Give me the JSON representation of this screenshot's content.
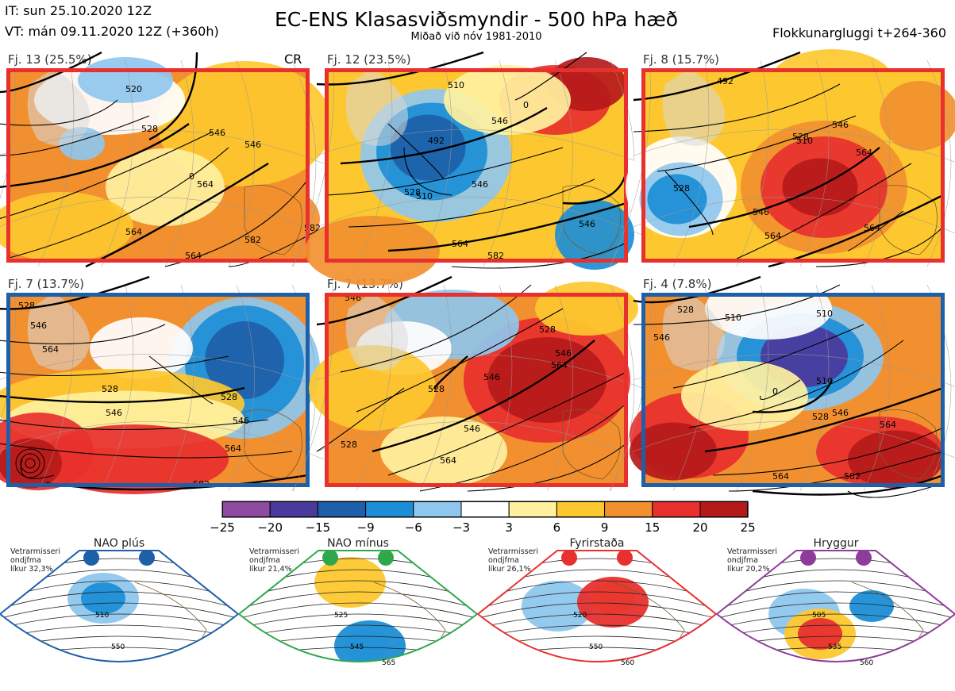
{
  "header": {
    "issue_time": "IT: sun 25.10.2020 12Z",
    "valid_time": "VT: mán 09.11.2020 12Z  (+360h)",
    "title": "EC-ENS Klasasviðsmyndir - 500 hPa hæð",
    "subtitle": "Miðað við nóv 1981-2010",
    "cluster_window": "Flokkunargluggi t+264-360"
  },
  "panels": [
    {
      "label": "Fj. 13 (25.5%)",
      "frame_color": "#e8302e",
      "tag": "CR",
      "contours": [
        "520",
        "528",
        "546",
        "546",
        "564",
        "564",
        "564",
        "582",
        "582",
        "0"
      ]
    },
    {
      "label": "Fj. 12 (23.5%)",
      "frame_color": "#e8302e",
      "tag": "",
      "contours": [
        "510",
        "492",
        "546",
        "528",
        "510",
        "546",
        "564",
        "582",
        "0",
        "546"
      ]
    },
    {
      "label": "Fj. 8 (15.7%)",
      "frame_color": "#e8302e",
      "tag": "",
      "contours": [
        "492",
        "510",
        "528",
        "546",
        "564",
        "528",
        "546",
        "564",
        "564"
      ]
    },
    {
      "label": "Fj. 7 (13.7%)",
      "frame_color": "#1d5fa8",
      "tag": "",
      "contours": [
        "528",
        "546",
        "564",
        "528",
        "546",
        "528",
        "546",
        "564",
        "582"
      ]
    },
    {
      "label": "Fj. 7 (13.7%)",
      "frame_color": "#e8302e",
      "tag": "",
      "contours": [
        "546",
        "528",
        "546",
        "528",
        "546",
        "564",
        "546",
        "564",
        "528"
      ]
    },
    {
      "label": "Fj. 4 (7.8%)",
      "frame_color": "#1d5fa8",
      "tag": "",
      "contours": [
        "528",
        "510",
        "546",
        "510",
        "0",
        "510",
        "528",
        "546",
        "564",
        "564",
        "582"
      ]
    }
  ],
  "colorbar": {
    "ticks": [
      "−25",
      "−20",
      "−15",
      "−9",
      "−6",
      "−3",
      "3",
      "6",
      "9",
      "15",
      "20",
      "25"
    ],
    "colors": [
      "#8e4a9e",
      "#4a3a9c",
      "#1d5fa8",
      "#1c8ed6",
      "#8fc7ee",
      "#ffffff",
      "#fff1a0",
      "#fdc82f",
      "#f2902f",
      "#e8302e",
      "#b51a1a"
    ]
  },
  "regimes": [
    {
      "name": "NAO plús",
      "note": [
        "Vetrarmisseri",
        "ondjfma",
        "líkur 32,3%"
      ],
      "color": "#1d5fa8",
      "contours": [
        "510",
        "550"
      ]
    },
    {
      "name": "NAO mínus",
      "note": [
        "Vetrarmisseri",
        "ondjfma",
        "líkur 21,4%"
      ],
      "color": "#2ea84a",
      "contours": [
        "525",
        "545",
        "565"
      ]
    },
    {
      "name": "Fyrirstaða",
      "note": [
        "Vetrarmisseri",
        "ondjfma",
        "líkur 26,1%"
      ],
      "color": "#e8302e",
      "contours": [
        "520",
        "550",
        "560"
      ]
    },
    {
      "name": "Hryggur",
      "note": [
        "Vetrarmisseri",
        "ondjfma",
        "líkur 20,2%"
      ],
      "color": "#8e3c9a",
      "contours": [
        "505",
        "535",
        "560"
      ]
    }
  ]
}
